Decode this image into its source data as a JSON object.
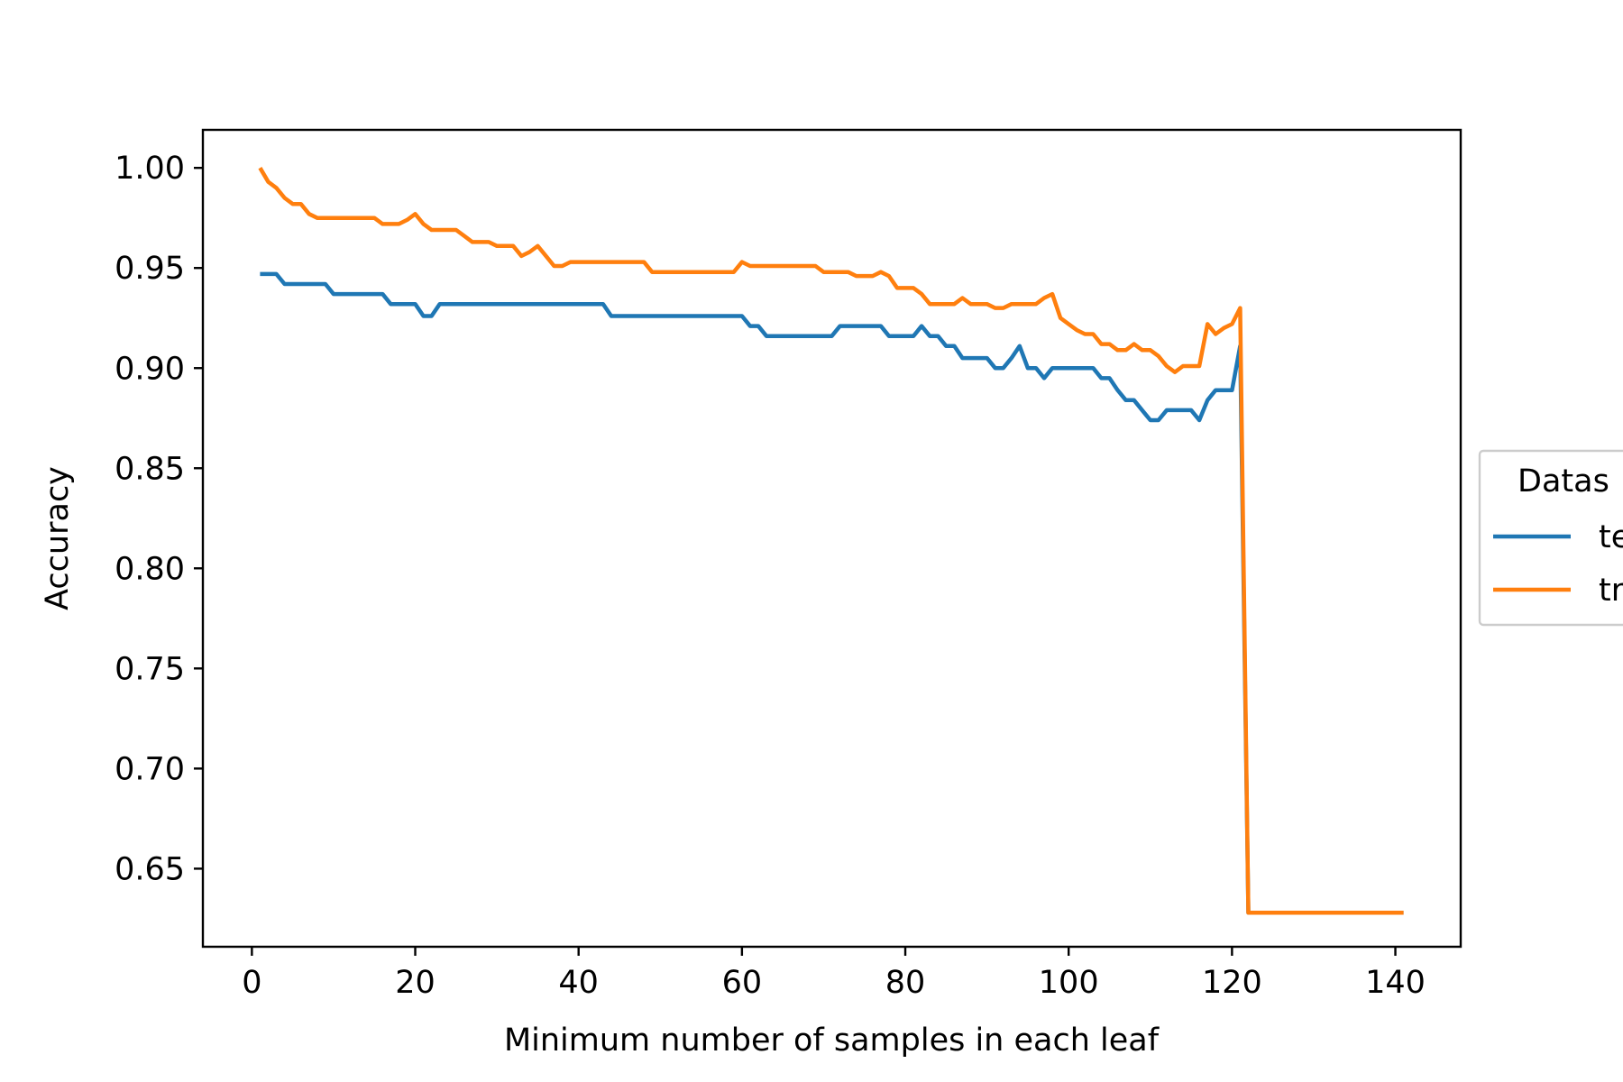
{
  "chart_data": {
    "type": "line",
    "title": "",
    "xlabel": "Minimum number of samples in each leaf",
    "ylabel": "Accuracy",
    "xlim": [
      -6,
      148
    ],
    "ylim": [
      0.611,
      1.019
    ],
    "x_ticks": [
      0,
      20,
      40,
      60,
      80,
      100,
      120,
      140
    ],
    "x_tick_labels": [
      "0",
      "20",
      "40",
      "60",
      "80",
      "100",
      "120",
      "140"
    ],
    "y_ticks": [
      0.65,
      0.7,
      0.75,
      0.8,
      0.85,
      0.9,
      0.95,
      1.0
    ],
    "y_tick_labels": [
      "0.65",
      "0.70",
      "0.75",
      "0.80",
      "0.85",
      "0.90",
      "0.95",
      "1.00"
    ],
    "grid": false,
    "legend": {
      "title": "Datas",
      "placement": "right-outside (clipped)",
      "entries": [
        "te",
        "tr"
      ]
    },
    "series": [
      {
        "name": "te",
        "color": "#1f77b4",
        "x": [
          1,
          2,
          3,
          4,
          5,
          6,
          7,
          8,
          9,
          10,
          11,
          12,
          13,
          14,
          15,
          16,
          17,
          18,
          19,
          20,
          21,
          22,
          23,
          24,
          25,
          26,
          27,
          28,
          29,
          30,
          31,
          32,
          33,
          34,
          35,
          36,
          37,
          38,
          39,
          40,
          41,
          42,
          43,
          44,
          45,
          46,
          47,
          48,
          49,
          50,
          51,
          52,
          53,
          54,
          55,
          56,
          57,
          58,
          59,
          60,
          61,
          62,
          63,
          64,
          65,
          66,
          67,
          68,
          69,
          70,
          71,
          72,
          73,
          74,
          75,
          76,
          77,
          78,
          79,
          80,
          81,
          82,
          83,
          84,
          85,
          86,
          87,
          88,
          89,
          90,
          91,
          92,
          93,
          94,
          95,
          96,
          97,
          98,
          99,
          100,
          101,
          102,
          103,
          104,
          105,
          106,
          107,
          108,
          109,
          110,
          111,
          112,
          113,
          114,
          115,
          116,
          117,
          118,
          119,
          120,
          121,
          122,
          123,
          124,
          125,
          126,
          127,
          128,
          129,
          130,
          131,
          132,
          133,
          134,
          135,
          136,
          137,
          138,
          139,
          140,
          141
        ],
        "values": [
          0.947,
          0.947,
          0.947,
          0.942,
          0.942,
          0.942,
          0.942,
          0.942,
          0.942,
          0.937,
          0.937,
          0.937,
          0.937,
          0.937,
          0.937,
          0.937,
          0.932,
          0.932,
          0.932,
          0.932,
          0.926,
          0.926,
          0.932,
          0.932,
          0.932,
          0.932,
          0.932,
          0.932,
          0.932,
          0.932,
          0.932,
          0.932,
          0.932,
          0.932,
          0.932,
          0.932,
          0.932,
          0.932,
          0.932,
          0.932,
          0.932,
          0.932,
          0.932,
          0.926,
          0.926,
          0.926,
          0.926,
          0.926,
          0.926,
          0.926,
          0.926,
          0.926,
          0.926,
          0.926,
          0.926,
          0.926,
          0.926,
          0.926,
          0.926,
          0.926,
          0.921,
          0.921,
          0.916,
          0.916,
          0.916,
          0.916,
          0.916,
          0.916,
          0.916,
          0.916,
          0.916,
          0.921,
          0.921,
          0.921,
          0.921,
          0.921,
          0.921,
          0.916,
          0.916,
          0.916,
          0.916,
          0.921,
          0.916,
          0.916,
          0.911,
          0.911,
          0.905,
          0.905,
          0.905,
          0.905,
          0.9,
          0.9,
          0.905,
          0.911,
          0.9,
          0.9,
          0.895,
          0.9,
          0.9,
          0.9,
          0.9,
          0.9,
          0.9,
          0.895,
          0.895,
          0.889,
          0.884,
          0.884,
          0.879,
          0.874,
          0.874,
          0.879,
          0.879,
          0.879,
          0.879,
          0.874,
          0.884,
          0.889,
          0.889,
          0.889,
          0.911,
          0.628,
          0.628,
          0.628,
          0.628,
          0.628,
          0.628,
          0.628,
          0.628,
          0.628,
          0.628,
          0.628,
          0.628,
          0.628,
          0.628,
          0.628,
          0.628,
          0.628,
          0.628,
          0.628,
          0.628
        ]
      },
      {
        "name": "tr",
        "color": "#ff7f0e",
        "x": [
          1,
          2,
          3,
          4,
          5,
          6,
          7,
          8,
          9,
          10,
          11,
          12,
          13,
          14,
          15,
          16,
          17,
          18,
          19,
          20,
          21,
          22,
          23,
          24,
          25,
          26,
          27,
          28,
          29,
          30,
          31,
          32,
          33,
          34,
          35,
          36,
          37,
          38,
          39,
          40,
          41,
          42,
          43,
          44,
          45,
          46,
          47,
          48,
          49,
          50,
          51,
          52,
          53,
          54,
          55,
          56,
          57,
          58,
          59,
          60,
          61,
          62,
          63,
          64,
          65,
          66,
          67,
          68,
          69,
          70,
          71,
          72,
          73,
          74,
          75,
          76,
          77,
          78,
          79,
          80,
          81,
          82,
          83,
          84,
          85,
          86,
          87,
          88,
          89,
          90,
          91,
          92,
          93,
          94,
          95,
          96,
          97,
          98,
          99,
          100,
          101,
          102,
          103,
          104,
          105,
          106,
          107,
          108,
          109,
          110,
          111,
          112,
          113,
          114,
          115,
          116,
          117,
          118,
          119,
          120,
          121,
          122,
          123,
          124,
          125,
          126,
          127,
          128,
          129,
          130,
          131,
          132,
          133,
          134,
          135,
          136,
          137,
          138,
          139,
          140,
          141
        ],
        "values": [
          1.0,
          0.993,
          0.99,
          0.985,
          0.982,
          0.982,
          0.977,
          0.975,
          0.975,
          0.975,
          0.975,
          0.975,
          0.975,
          0.975,
          0.975,
          0.972,
          0.972,
          0.972,
          0.974,
          0.977,
          0.972,
          0.969,
          0.969,
          0.969,
          0.969,
          0.966,
          0.963,
          0.963,
          0.963,
          0.961,
          0.961,
          0.961,
          0.956,
          0.958,
          0.961,
          0.956,
          0.951,
          0.951,
          0.953,
          0.953,
          0.953,
          0.953,
          0.953,
          0.953,
          0.953,
          0.953,
          0.953,
          0.953,
          0.948,
          0.948,
          0.948,
          0.948,
          0.948,
          0.948,
          0.948,
          0.948,
          0.948,
          0.948,
          0.948,
          0.953,
          0.951,
          0.951,
          0.951,
          0.951,
          0.951,
          0.951,
          0.951,
          0.951,
          0.951,
          0.948,
          0.948,
          0.948,
          0.948,
          0.946,
          0.946,
          0.946,
          0.948,
          0.946,
          0.94,
          0.94,
          0.94,
          0.937,
          0.932,
          0.932,
          0.932,
          0.932,
          0.935,
          0.932,
          0.932,
          0.932,
          0.93,
          0.93,
          0.932,
          0.932,
          0.932,
          0.932,
          0.935,
          0.937,
          0.925,
          0.922,
          0.919,
          0.917,
          0.917,
          0.912,
          0.912,
          0.909,
          0.909,
          0.912,
          0.909,
          0.909,
          0.906,
          0.901,
          0.898,
          0.901,
          0.901,
          0.901,
          0.922,
          0.917,
          0.92,
          0.922,
          0.93,
          0.628,
          0.628,
          0.628,
          0.628,
          0.628,
          0.628,
          0.628,
          0.628,
          0.628,
          0.628,
          0.628,
          0.628,
          0.628,
          0.628,
          0.628,
          0.628,
          0.628,
          0.628,
          0.628,
          0.628
        ]
      }
    ]
  }
}
